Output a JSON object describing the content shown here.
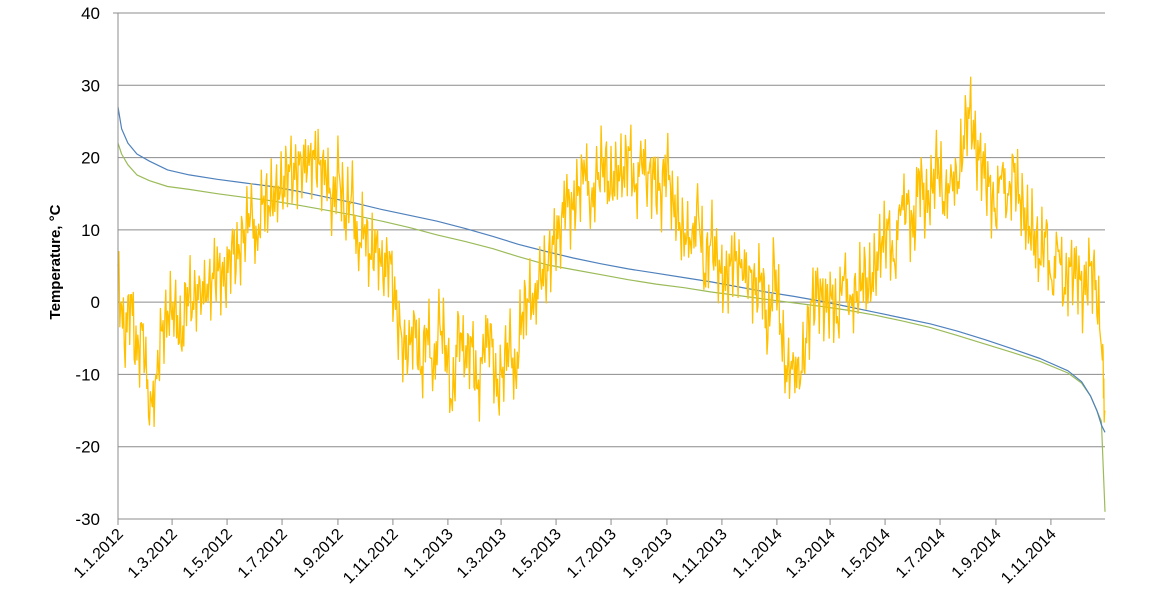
{
  "chart_data": {
    "type": "line",
    "title": "",
    "xlabel": "",
    "ylabel": "Temperature, °C",
    "ylim": [
      -30,
      40
    ],
    "yticks": [
      40,
      30,
      20,
      10,
      0,
      -10,
      -20,
      -30
    ],
    "xlim": [
      "2012-01-01",
      "2014-12-31"
    ],
    "xticks": [
      {
        "date": "2012-01-01",
        "label": "1.1.2012"
      },
      {
        "date": "2012-03-01",
        "label": "1.3.2012"
      },
      {
        "date": "2012-05-01",
        "label": "1.5.2012"
      },
      {
        "date": "2012-07-01",
        "label": "1.7.2012"
      },
      {
        "date": "2012-09-01",
        "label": "1.9.2012"
      },
      {
        "date": "2012-11-01",
        "label": "1.11.2012"
      },
      {
        "date": "2013-01-01",
        "label": "1.1.2013"
      },
      {
        "date": "2013-03-01",
        "label": "1.3.2013"
      },
      {
        "date": "2013-05-01",
        "label": "1.5.2013"
      },
      {
        "date": "2013-07-01",
        "label": "1.7.2013"
      },
      {
        "date": "2013-09-01",
        "label": "1.9.2013"
      },
      {
        "date": "2013-11-01",
        "label": "1.11.2013"
      },
      {
        "date": "2014-01-01",
        "label": "1.1.2014"
      },
      {
        "date": "2014-03-01",
        "label": "1.3.2014"
      },
      {
        "date": "2014-05-01",
        "label": "1.5.2014"
      },
      {
        "date": "2014-07-01",
        "label": "1.7.2014"
      },
      {
        "date": "2014-09-01",
        "label": "1.9.2014"
      },
      {
        "date": "2014-11-01",
        "label": "1.11.2014"
      }
    ],
    "grid": true,
    "legend": "none",
    "series": [
      {
        "color": "#FFC000",
        "x": [
          "2012-01-01",
          "2012-01-08",
          "2012-01-15",
          "2012-01-22",
          "2012-01-29",
          "2012-02-05",
          "2012-02-12",
          "2012-02-19",
          "2012-02-26",
          "2012-03-04",
          "2012-03-11",
          "2012-03-18",
          "2012-03-25",
          "2012-04-01",
          "2012-04-08",
          "2012-04-15",
          "2012-04-22",
          "2012-04-29",
          "2012-05-06",
          "2012-05-13",
          "2012-05-20",
          "2012-05-27",
          "2012-06-03",
          "2012-06-10",
          "2012-06-17",
          "2012-06-24",
          "2012-07-01",
          "2012-07-08",
          "2012-07-15",
          "2012-07-22",
          "2012-07-29",
          "2012-08-05",
          "2012-08-12",
          "2012-08-19",
          "2012-08-26",
          "2012-09-02",
          "2012-09-09",
          "2012-09-16",
          "2012-09-23",
          "2012-09-30",
          "2012-10-07",
          "2012-10-14",
          "2012-10-21",
          "2012-10-28",
          "2012-11-04",
          "2012-11-11",
          "2012-11-18",
          "2012-11-25",
          "2012-12-02",
          "2012-12-09",
          "2012-12-16",
          "2012-12-23",
          "2012-12-30",
          "2013-01-06",
          "2013-01-13",
          "2013-01-20",
          "2013-01-27",
          "2013-02-03",
          "2013-02-10",
          "2013-02-17",
          "2013-02-24",
          "2013-03-03",
          "2013-03-10",
          "2013-03-17",
          "2013-03-24",
          "2013-03-31",
          "2013-04-07",
          "2013-04-14",
          "2013-04-21",
          "2013-04-28",
          "2013-05-05",
          "2013-05-12",
          "2013-05-19",
          "2013-05-26",
          "2013-06-02",
          "2013-06-09",
          "2013-06-16",
          "2013-06-23",
          "2013-06-30",
          "2013-07-07",
          "2013-07-14",
          "2013-07-21",
          "2013-07-28",
          "2013-08-04",
          "2013-08-11",
          "2013-08-18",
          "2013-08-25",
          "2013-09-01",
          "2013-09-08",
          "2013-09-15",
          "2013-09-22",
          "2013-09-29",
          "2013-10-06",
          "2013-10-13",
          "2013-10-20",
          "2013-10-27",
          "2013-11-03",
          "2013-11-10",
          "2013-11-17",
          "2013-11-24",
          "2013-12-01",
          "2013-12-08",
          "2013-12-15",
          "2013-12-22",
          "2013-12-29",
          "2014-01-05",
          "2014-01-12",
          "2014-01-19",
          "2014-01-26",
          "2014-02-02",
          "2014-02-09",
          "2014-02-16",
          "2014-02-23",
          "2014-03-02",
          "2014-03-09",
          "2014-03-16",
          "2014-03-23",
          "2014-03-30",
          "2014-04-06",
          "2014-04-13",
          "2014-04-20",
          "2014-04-27",
          "2014-05-04",
          "2014-05-11",
          "2014-05-18",
          "2014-05-25",
          "2014-06-01",
          "2014-06-08",
          "2014-06-15",
          "2014-06-22",
          "2014-06-29",
          "2014-07-06",
          "2014-07-13",
          "2014-07-20",
          "2014-07-27",
          "2014-08-03",
          "2014-08-10",
          "2014-08-17",
          "2014-08-24",
          "2014-08-31",
          "2014-09-07",
          "2014-09-14",
          "2014-09-21",
          "2014-09-28",
          "2014-10-05",
          "2014-10-12",
          "2014-10-19",
          "2014-10-26",
          "2014-11-02",
          "2014-11-09",
          "2014-11-16",
          "2014-11-23",
          "2014-11-30",
          "2014-12-07",
          "2014-12-14",
          "2014-12-21",
          "2014-12-28",
          "2014-12-31"
        ],
        "values": [
          5,
          -6,
          1,
          -8,
          -3,
          -17,
          -10,
          -4,
          -2,
          0,
          -6,
          2,
          -1,
          3,
          0,
          4,
          5,
          2,
          8,
          6,
          10,
          12,
          9,
          14,
          13,
          16,
          15,
          19,
          17,
          20,
          18,
          21,
          19,
          17,
          14,
          18,
          12,
          15,
          8,
          10,
          6,
          9,
          3,
          7,
          -1,
          -5,
          -8,
          -2,
          -10,
          -4,
          -9,
          -3,
          -6,
          -15,
          -2,
          -9,
          -5,
          -12,
          -7,
          -3,
          -13,
          -9,
          -6,
          -10,
          -2,
          0,
          1,
          3,
          5,
          8,
          10,
          14,
          13,
          16,
          18,
          14,
          17,
          20,
          15,
          19,
          17,
          21,
          16,
          19,
          18,
          17,
          15,
          19,
          14,
          11,
          8,
          10,
          12,
          4,
          9,
          6,
          2,
          5,
          7,
          3,
          5,
          1,
          4,
          -5,
          6,
          -3,
          -11,
          -7,
          -12,
          -5,
          0,
          2,
          -1,
          1,
          -2,
          3,
          1,
          0,
          4,
          2,
          5,
          8,
          10,
          6,
          12,
          15,
          9,
          18,
          13,
          16,
          20,
          12,
          19,
          15,
          23,
          27,
          21,
          19,
          16,
          13,
          17,
          15,
          18,
          14,
          11,
          10,
          6,
          9,
          3,
          7,
          2,
          5,
          4,
          1,
          5,
          3,
          -8,
          -15
        ]
      },
      {
        "color": "#4F81BD",
        "x": [
          "2012-01-01",
          "2012-01-05",
          "2012-01-12",
          "2012-01-22",
          "2012-02-05",
          "2012-02-25",
          "2012-03-20",
          "2012-04-20",
          "2012-05-20",
          "2012-06-20",
          "2012-07-20",
          "2012-08-20",
          "2012-09-20",
          "2012-10-20",
          "2012-11-20",
          "2012-12-20",
          "2013-01-20",
          "2013-02-20",
          "2013-03-20",
          "2013-04-20",
          "2013-05-20",
          "2013-06-20",
          "2013-07-20",
          "2013-08-20",
          "2013-09-20",
          "2013-10-20",
          "2013-11-20",
          "2013-12-20",
          "2014-01-20",
          "2014-02-20",
          "2014-03-20",
          "2014-04-20",
          "2014-05-20",
          "2014-06-20",
          "2014-07-20",
          "2014-08-20",
          "2014-09-20",
          "2014-10-20",
          "2014-11-20",
          "2014-12-05",
          "2014-12-15",
          "2014-12-22",
          "2014-12-27",
          "2014-12-31"
        ],
        "values": [
          27,
          24,
          22,
          20.5,
          19.5,
          18.3,
          17.6,
          17,
          16.5,
          16,
          15.3,
          14.5,
          13.7,
          12.8,
          12,
          11.2,
          10.2,
          9.1,
          8,
          7,
          6.1,
          5.3,
          4.6,
          4,
          3.4,
          2.8,
          2.1,
          1.4,
          0.8,
          0.1,
          -0.6,
          -1.4,
          -2.2,
          -3,
          -4,
          -5.2,
          -6.5,
          -7.8,
          -9.5,
          -11,
          -13,
          -15,
          -17,
          -18
        ]
      },
      {
        "color": "#9BBB59",
        "x": [
          "2012-01-01",
          "2012-01-05",
          "2012-01-12",
          "2012-01-22",
          "2012-02-05",
          "2012-02-25",
          "2012-03-20",
          "2012-04-20",
          "2012-05-20",
          "2012-06-20",
          "2012-07-20",
          "2012-08-20",
          "2012-09-20",
          "2012-10-20",
          "2012-11-20",
          "2012-12-20",
          "2013-01-20",
          "2013-02-20",
          "2013-03-20",
          "2013-04-20",
          "2013-05-20",
          "2013-06-20",
          "2013-07-20",
          "2013-08-20",
          "2013-09-20",
          "2013-10-20",
          "2013-11-20",
          "2013-12-20",
          "2014-01-20",
          "2014-02-20",
          "2014-03-20",
          "2014-04-20",
          "2014-05-20",
          "2014-06-20",
          "2014-07-20",
          "2014-08-20",
          "2014-09-20",
          "2014-10-20",
          "2014-11-20",
          "2014-12-05",
          "2014-12-15",
          "2014-12-22",
          "2014-12-27",
          "2014-12-31"
        ],
        "values": [
          22,
          20.5,
          19,
          17.6,
          16.8,
          16,
          15.6,
          15,
          14.5,
          14,
          13.4,
          12.7,
          12,
          11.2,
          10.3,
          9.3,
          8.4,
          7.4,
          6.3,
          5.2,
          4.5,
          3.8,
          3.1,
          2.5,
          2,
          1.4,
          0.9,
          0.4,
          -0.1,
          -0.6,
          -1.1,
          -1.8,
          -2.6,
          -3.5,
          -4.6,
          -5.8,
          -7,
          -8.2,
          -9.8,
          -11.2,
          -13,
          -15,
          -16.5,
          -29
        ]
      }
    ]
  }
}
